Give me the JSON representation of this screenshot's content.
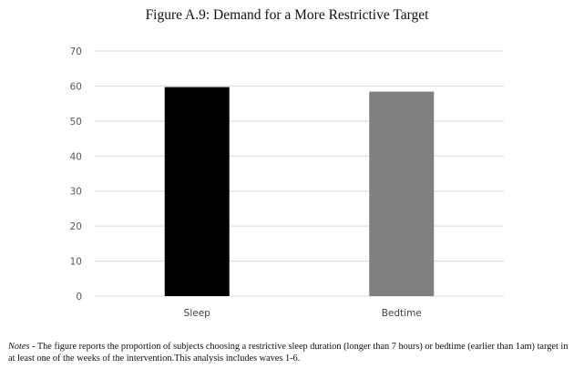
{
  "chart_data": {
    "type": "bar",
    "title": "Figure A.9: Demand for a More Restrictive Target",
    "xlabel": "",
    "ylabel": "",
    "categories": [
      "Sleep",
      "Bedtime"
    ],
    "values": [
      59.7,
      58.4
    ],
    "colors": [
      "#000000",
      "#7f7f7f"
    ],
    "ylim": [
      0,
      70
    ],
    "yticks": [
      0,
      10,
      20,
      30,
      40,
      50,
      60,
      70
    ],
    "grid": true,
    "legend": "none"
  },
  "notes": {
    "lead": "Notes -",
    "text": "The figure reports the proportion of subjects choosing a restrictive sleep duration (longer than 7 hours) or bedtime (earlier than 1am) target in at least one of the weeks of the intervention.This analysis includes waves 1-6."
  }
}
